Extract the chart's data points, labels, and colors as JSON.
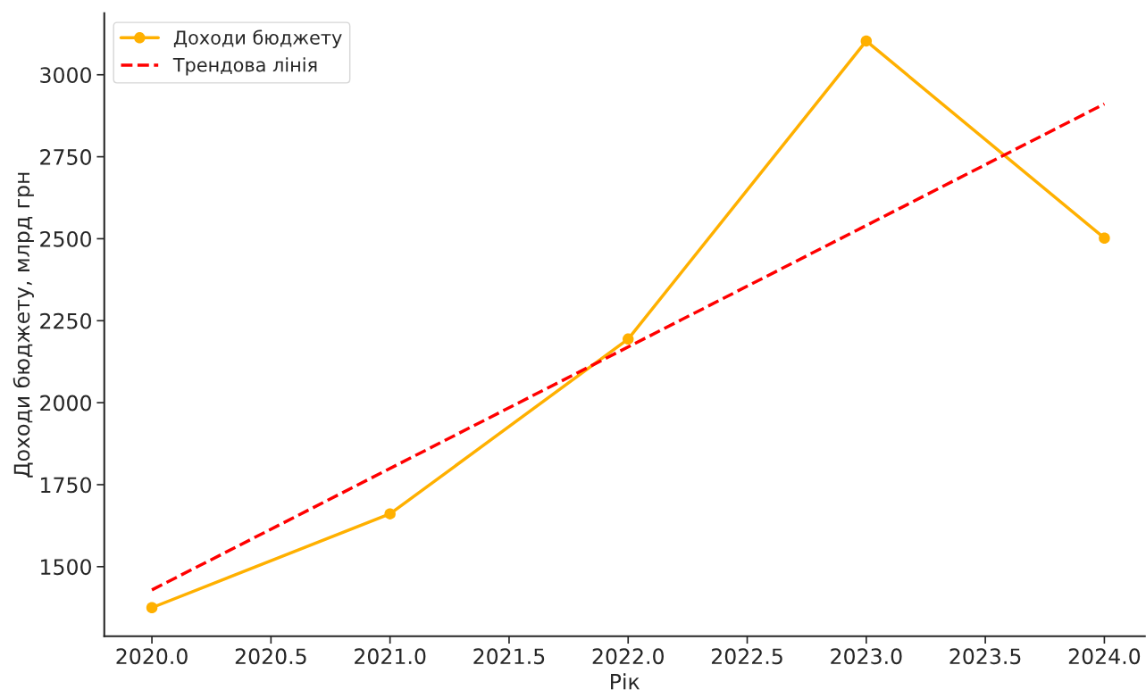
{
  "chart_data": {
    "type": "line",
    "xlabel": "Рік",
    "ylabel": "Доходи бюджету, млрд грн",
    "series": [
      {
        "name": "Доходи бюджету",
        "color": "#ffb000",
        "x": [
          2020,
          2021,
          2022,
          2023,
          2024
        ],
        "values": [
          1375,
          1661,
          2194,
          3103,
          2502
        ],
        "marker": "circle",
        "line_style": "solid"
      },
      {
        "name": "Трендова лінія",
        "color": "#ff0000",
        "type": "line",
        "x": [
          2020,
          2024
        ],
        "values": [
          1429,
          2911
        ],
        "marker": "none",
        "line_style": "dashed"
      }
    ],
    "xlim": [
      2019.8,
      2024.17
    ],
    "xticks": [
      {
        "value": 2020,
        "label": "2020.0"
      },
      2020.5,
      {
        "value": 2021,
        "label": "2021.0"
      },
      2021.5,
      {
        "value": 2022,
        "label": "2022.0"
      },
      2022.5,
      {
        "value": 2023,
        "label": "2023.0"
      },
      2023.5,
      {
        "value": 2024,
        "label": "2024.0"
      }
    ],
    "ylim": [
      1288,
      3188
    ],
    "yticks": [
      1500,
      1750,
      2000,
      2250,
      2500,
      2750,
      3000
    ],
    "grid": false,
    "legend": "top left"
  }
}
